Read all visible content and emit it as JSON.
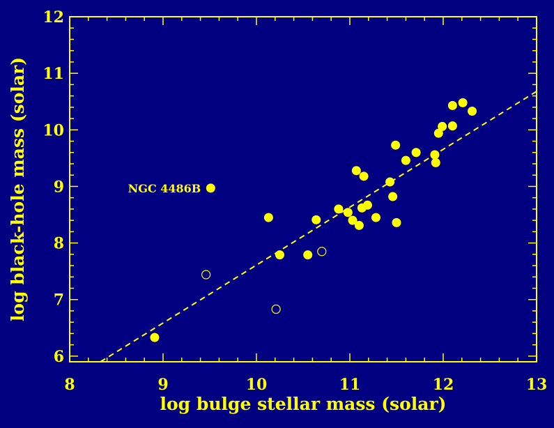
{
  "colors": {
    "background": "#000080",
    "foreground": "#ffff00"
  },
  "chart_data": {
    "type": "scatter",
    "title": "",
    "xlabel": "log bulge stellar mass (solar)",
    "ylabel": "log black-hole mass (solar)",
    "xlim": [
      8,
      13
    ],
    "ylim": [
      5.9,
      12
    ],
    "xticks": [
      8,
      9,
      10,
      11,
      12,
      13
    ],
    "xtick_labels": [
      "8",
      "9",
      "10",
      "11",
      "12",
      "13"
    ],
    "yticks": [
      6,
      7,
      8,
      9,
      10,
      11,
      12
    ],
    "ytick_labels": [
      "6",
      "7",
      "8",
      "9",
      "10",
      "11",
      "12"
    ],
    "grid": false,
    "legend": "none",
    "series": [
      {
        "marker": "filled-circle",
        "points": [
          [
            8.91,
            6.33
          ],
          [
            9.51,
            8.97
          ],
          [
            10.13,
            8.45
          ],
          [
            10.25,
            7.79
          ],
          [
            10.55,
            7.79
          ],
          [
            10.64,
            8.41
          ],
          [
            10.88,
            8.6
          ],
          [
            10.98,
            8.54
          ],
          [
            11.03,
            8.4
          ],
          [
            11.07,
            9.28
          ],
          [
            11.1,
            8.31
          ],
          [
            11.13,
            8.62
          ],
          [
            11.15,
            9.18
          ],
          [
            11.19,
            8.67
          ],
          [
            11.28,
            8.45
          ],
          [
            11.43,
            9.08
          ],
          [
            11.46,
            8.82
          ],
          [
            11.49,
            9.73
          ],
          [
            11.5,
            8.36
          ],
          [
            11.6,
            9.46
          ],
          [
            11.71,
            9.6
          ],
          [
            11.91,
            9.56
          ],
          [
            11.92,
            9.42
          ],
          [
            11.95,
            9.94
          ],
          [
            11.99,
            10.06
          ],
          [
            12.1,
            10.07
          ],
          [
            12.1,
            10.43
          ],
          [
            12.21,
            10.48
          ],
          [
            12.31,
            10.33
          ]
        ]
      },
      {
        "marker": "open-circle",
        "points": [
          [
            9.46,
            7.44
          ],
          [
            10.21,
            6.83
          ],
          [
            10.7,
            7.85
          ]
        ]
      },
      {
        "marker": "dashed-line",
        "points": [
          [
            8.33,
            5.9
          ],
          [
            13.0,
            10.68
          ]
        ]
      }
    ],
    "annotations": [
      {
        "text": "NGC 4486B",
        "x": 9.51,
        "y": 8.97
      }
    ]
  }
}
